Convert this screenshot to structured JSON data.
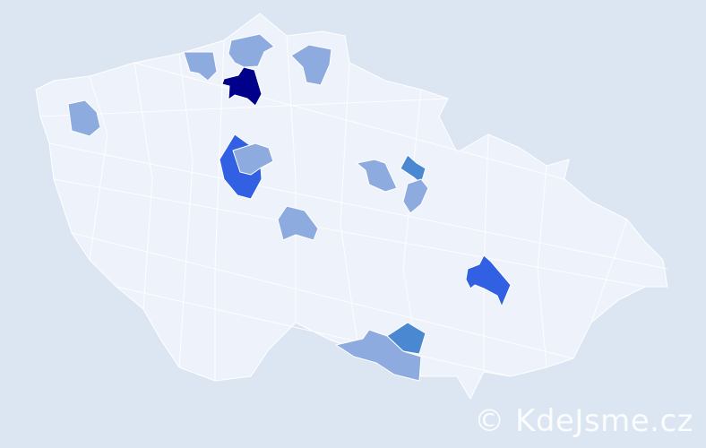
{
  "map": {
    "colors": {
      "background": "#dce5f2",
      "base": "#eef2fa",
      "level1": "#8eabe0",
      "level2": "#4a88d2",
      "level3": "#3160e2",
      "level4": "#00008b"
    },
    "highlighted_regions": [
      {
        "level": 4
      },
      {
        "level": 1
      },
      {
        "level": 1
      },
      {
        "level": 1
      },
      {
        "level": 1
      },
      {
        "level": 3
      },
      {
        "level": 1
      },
      {
        "level": 1
      },
      {
        "level": 1
      },
      {
        "level": 2
      },
      {
        "level": 1
      },
      {
        "level": 3
      },
      {
        "level": 2
      },
      {
        "level": 1
      }
    ]
  },
  "watermark": "© KdeJsme.cz"
}
